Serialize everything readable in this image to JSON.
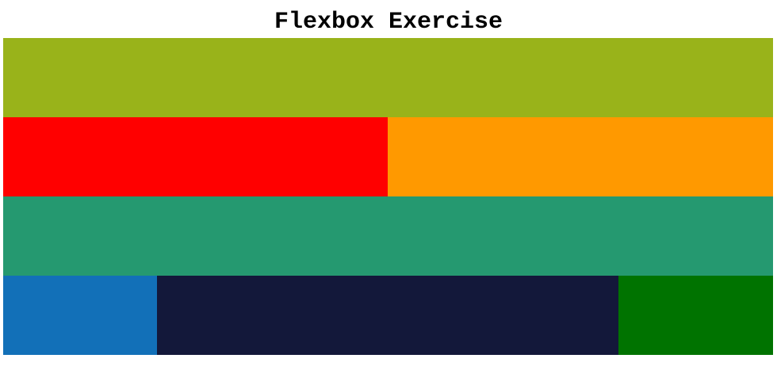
{
  "header": {
    "title": "Flexbox Exercise"
  },
  "colors": {
    "box_1": "#99b31a",
    "box_2": "#ff0000",
    "box_3": "#ff9900",
    "box_4": "#259970",
    "box_5": "#1270b8",
    "box_6": "#13183a",
    "box_7": "#007300"
  }
}
